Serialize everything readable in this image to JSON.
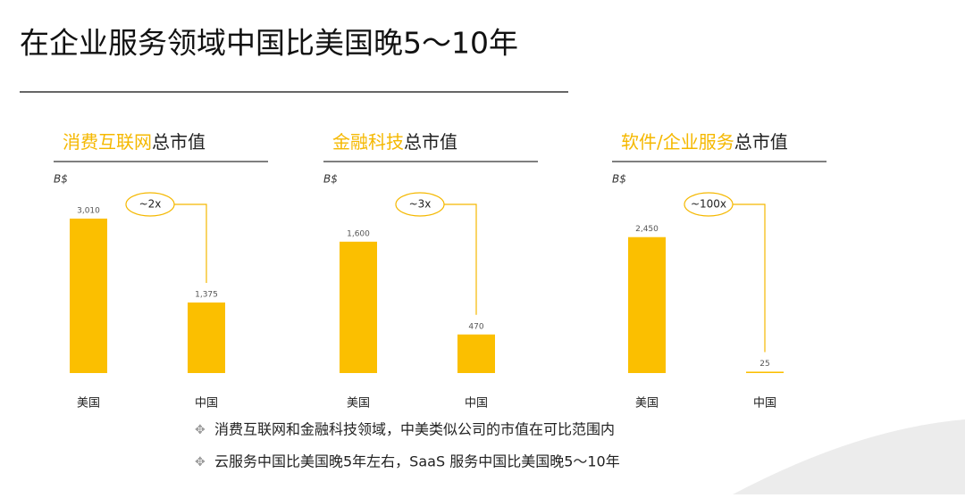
{
  "title": "在企业服务领域中国比美国晚5～10年",
  "chart_data": [
    {
      "type": "bar",
      "title": [
        {
          "text": "消费互联网",
          "color": "#f5b800"
        },
        {
          "text": "总市值",
          "color": "#222222"
        }
      ],
      "unit": "B$",
      "categories": [
        "美国",
        "中国"
      ],
      "values": [
        3010,
        1375
      ],
      "value_labels": [
        "3,010",
        "1,375"
      ],
      "annotation": "~2x",
      "color": "#fbbf00",
      "ylim": [
        0,
        4000
      ]
    },
    {
      "type": "bar",
      "title": [
        {
          "text": "金融科技",
          "color": "#f5b800"
        },
        {
          "text": "总市值",
          "color": "#222222"
        }
      ],
      "unit": "B$",
      "categories": [
        "美国",
        "中国"
      ],
      "values": [
        1600,
        470
      ],
      "value_labels": [
        "1,600",
        "470"
      ],
      "annotation": "~3x",
      "color": "#fbbf00",
      "ylim": [
        0,
        2500
      ]
    },
    {
      "type": "bar",
      "title": [
        {
          "text": "软件/企业服务",
          "color": "#f5b800"
        },
        {
          "text": "总市值",
          "color": "#222222"
        }
      ],
      "unit": "B$",
      "categories": [
        "美国",
        "中国"
      ],
      "values": [
        2450,
        25
      ],
      "value_labels": [
        "2,450",
        "25"
      ],
      "annotation": "~100x",
      "color": "#fbbf00",
      "ylim": [
        0,
        3700
      ]
    }
  ],
  "bullets": [
    "消费互联网和金融科技领域，中美类似公司的市值在可比范围内",
    "云服务中国比美国晚5年左右，SaaS 服务中国比美国晚5～10年"
  ]
}
